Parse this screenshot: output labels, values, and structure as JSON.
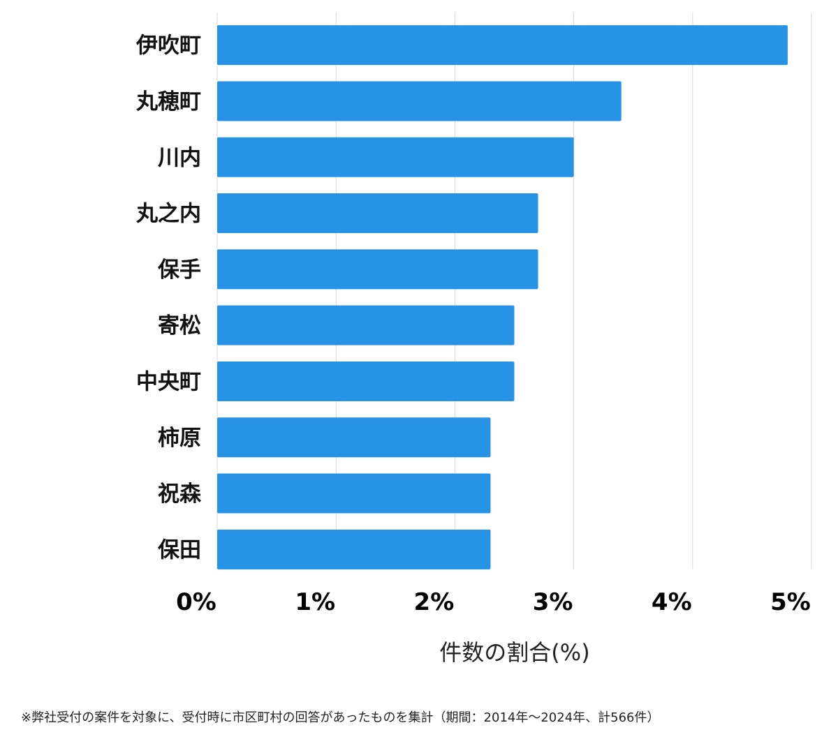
{
  "chart_data": {
    "type": "bar",
    "orientation": "horizontal",
    "categories": [
      "伊吹町",
      "丸穂町",
      "川内",
      "丸之内",
      "保手",
      "寄松",
      "中央町",
      "柿原",
      "祝森",
      "保田"
    ],
    "values": [
      4.8,
      3.4,
      3.0,
      2.7,
      2.7,
      2.5,
      2.5,
      2.3,
      2.3,
      2.3
    ],
    "xlabel": "件数の割合(%)",
    "ylabel": "",
    "xlim": [
      0,
      5
    ],
    "ticks": [
      0,
      1,
      2,
      3,
      4,
      5
    ],
    "tick_labels": [
      "0%",
      "1%",
      "2%",
      "3%",
      "4%",
      "5%"
    ],
    "grid": "vertical",
    "bar_color": "#2793e6"
  },
  "footnote": "※弊社受付の案件を対象に、受付時に市区町村の回答があったものを集計（期間：2014年～2024年、計566件）"
}
